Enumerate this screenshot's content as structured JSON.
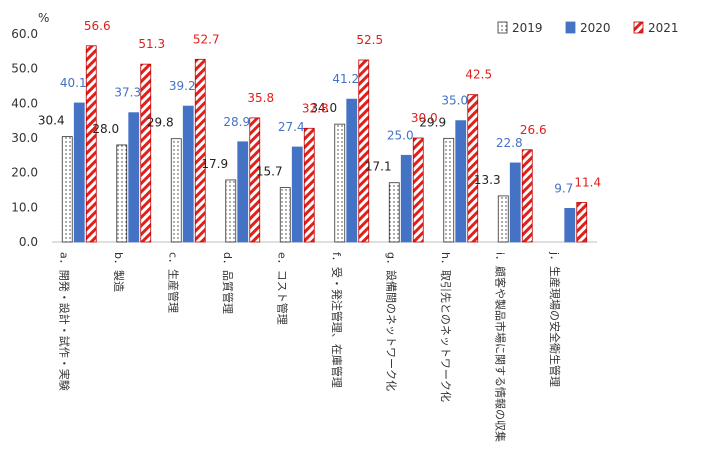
{
  "chart_data": {
    "type": "bar",
    "y_unit": "%",
    "ylim": [
      0,
      60
    ],
    "y_ticks": [
      "0.0",
      "10.0",
      "20.0",
      "30.0",
      "40.0",
      "50.0",
      "60.0"
    ],
    "grid": false,
    "legend_position": "top-right",
    "categories": [
      "a．開発・設計・試作・実験",
      "b．製造",
      "c．生産管理",
      "d．品質管理",
      "e．コスト管理",
      "f．受・発注管理、在庫管理",
      "g．設備間のネットワーク化",
      "h．取引先とのネットワーク化",
      "i．顧客や製品市場に関する情報の収集",
      "j．生産現場の安全衛生管理"
    ],
    "series": [
      {
        "name": "2019",
        "label_color": "#222222",
        "fill_color": "#ffffff",
        "values": [
          30.4,
          28.0,
          29.8,
          17.9,
          15.7,
          34.0,
          17.1,
          29.9,
          13.3,
          null
        ]
      },
      {
        "name": "2020",
        "label_color": "#4472c4",
        "fill_color": "#4472c4",
        "values": [
          40.1,
          37.3,
          39.2,
          28.9,
          27.4,
          41.2,
          25.0,
          35.0,
          22.8,
          9.7
        ]
      },
      {
        "name": "2021",
        "label_color": "#e0201b",
        "fill_color": "#e0201b",
        "values": [
          56.6,
          51.3,
          52.7,
          35.8,
          32.8,
          52.5,
          30.0,
          42.5,
          26.6,
          11.4
        ]
      }
    ]
  }
}
